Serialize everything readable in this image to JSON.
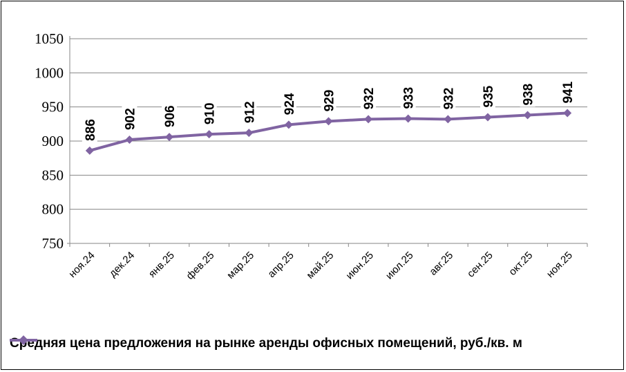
{
  "chart_data": {
    "type": "line",
    "categories": [
      "ноя.24",
      "дек.24",
      "янв.25",
      "фев.25",
      "мар.25",
      "апр.25",
      "май.25",
      "июн.25",
      "июл.25",
      "авг.25",
      "сен.25",
      "окт.25",
      "ноя.25"
    ],
    "series": [
      {
        "name": "Средняя цена предложения на рынке аренды офисных помещений,  руб./кв. м",
        "values": [
          886,
          902,
          906,
          910,
          912,
          924,
          929,
          932,
          933,
          932,
          935,
          938,
          941
        ],
        "color": "#8064a2"
      }
    ],
    "y_ticks": [
      "750",
      "800",
      "850",
      "900",
      "950",
      "1000",
      "1050"
    ],
    "ylim": [
      750,
      1050
    ],
    "grid": true,
    "legend_position": "bottom",
    "data_labels": true
  }
}
